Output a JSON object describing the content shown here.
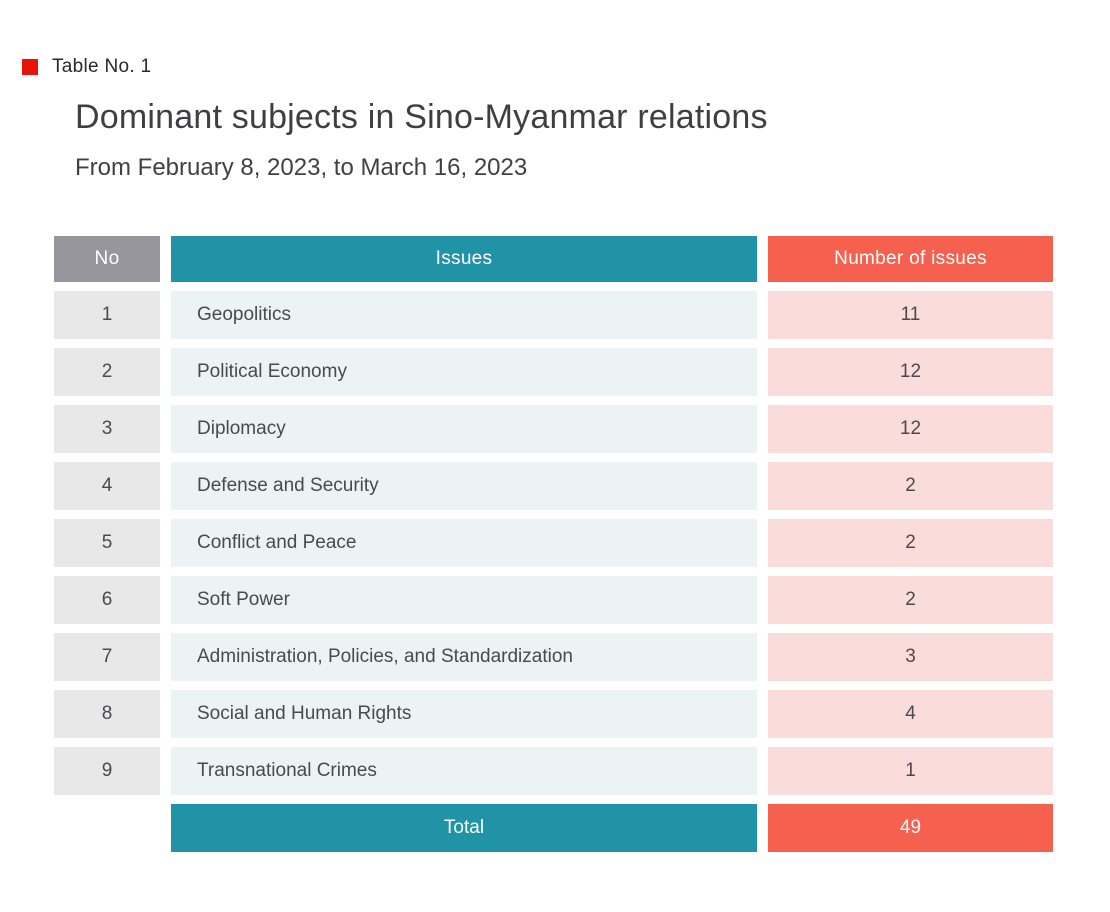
{
  "header": {
    "tag_label": "Table No. 1",
    "title": "Dominant subjects in Sino-Myanmar relations",
    "subtitle": "From February 8, 2023, to March 16, 2023"
  },
  "colors": {
    "accent_red": "#e81309",
    "header_gray": "#97969c",
    "header_teal": "#2093a6",
    "header_salmon": "#f6604e",
    "cell_gray": "#e9e8e9",
    "cell_teal_light": "#ecf3f5",
    "cell_pink": "#fadcda"
  },
  "table": {
    "columns": [
      "No",
      "Issues",
      "Number of issues"
    ],
    "rows": [
      {
        "no": "1",
        "issue": "Geopolitics",
        "count": "11"
      },
      {
        "no": "2",
        "issue": "Political Economy",
        "count": "12"
      },
      {
        "no": "3",
        "issue": "Diplomacy",
        "count": "12"
      },
      {
        "no": "4",
        "issue": "Defense and Security",
        "count": "2"
      },
      {
        "no": "5",
        "issue": "Conflict and Peace",
        "count": "2"
      },
      {
        "no": "6",
        "issue": "Soft Power",
        "count": "2"
      },
      {
        "no": "7",
        "issue": "Administration, Policies, and Standardization",
        "count": "3"
      },
      {
        "no": "8",
        "issue": "Social and Human Rights",
        "count": "4"
      },
      {
        "no": "9",
        "issue": "Transnational Crimes",
        "count": "1"
      }
    ],
    "total_label": "Total",
    "total_value": "49"
  },
  "chart_data": {
    "type": "table",
    "title": "Dominant subjects in Sino-Myanmar relations",
    "subtitle": "From February 8, 2023, to March 16, 2023",
    "columns": [
      "No",
      "Issues",
      "Number of issues"
    ],
    "rows": [
      [
        1,
        "Geopolitics",
        11
      ],
      [
        2,
        "Political Economy",
        12
      ],
      [
        3,
        "Diplomacy",
        12
      ],
      [
        4,
        "Defense and Security",
        2
      ],
      [
        5,
        "Conflict and Peace",
        2
      ],
      [
        6,
        "Soft Power",
        2
      ],
      [
        7,
        "Administration, Policies, and Standardization",
        3
      ],
      [
        8,
        "Social and Human Rights",
        4
      ],
      [
        9,
        "Transnational Crimes",
        1
      ]
    ],
    "total": 49
  }
}
